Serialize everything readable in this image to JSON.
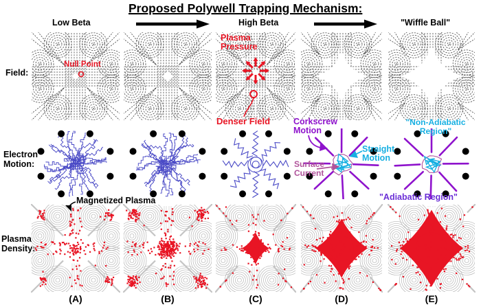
{
  "title": "Proposed Polywell Trapping Mechanism:",
  "header": {
    "stage_labels": [
      "Low Beta",
      "High Beta",
      "\"Wiffle Ball\""
    ]
  },
  "rows": {
    "field": "Field:",
    "electron": "Electron\nMotion:",
    "plasma": "Plasma\nDensity:"
  },
  "columns": [
    "(A)",
    "(B)",
    "(C)",
    "(D)",
    "(E)"
  ],
  "annotations": {
    "null_point": "Null Point",
    "plasma_pressure": "Plasma\nPressure",
    "denser_field": "Denser Field",
    "corkscrew_motion": "Corkscrew\nMotion",
    "straight_motion": "Straight\nMotion",
    "surface_current": "Surface\nCurrent",
    "non_adiabatic_region": "\"Non-Adiabatic\nRegion\"",
    "adiabatic_region": "\"Adiabatic Region\"",
    "magnetized_plasma": "Magnetized Plasma"
  },
  "colors": {
    "red": "#e81524",
    "blue": "#4a4ac6",
    "purple": "#8e12cc",
    "cyan": "#17b0e2",
    "plum": "#b0539b",
    "adiabatic_purple": "#6b2fd6",
    "black": "#000000",
    "field_line": "#3d3d3d",
    "contour": "#b5b5b5",
    "diag": "#c4c4c4"
  },
  "figure": {
    "field_panels": [
      {
        "void_radius": 7,
        "null_point": true
      },
      {
        "void_radius": 10
      },
      {
        "void_radius": 14,
        "pressure_arrows": true,
        "denser_field_marker": true
      },
      {
        "void_radius": 40
      },
      {
        "void_radius": 48
      }
    ],
    "electron_panels": [
      {
        "style": "dense",
        "seed": 7
      },
      {
        "style": "dense",
        "seed": 21
      },
      {
        "style": "spokes",
        "seed": 33
      },
      {
        "style": "wiffle",
        "seed": 44
      },
      {
        "style": "wiffle",
        "seed": 55
      }
    ],
    "plasma_panels": [
      {
        "mode": "sparse",
        "seed": 101,
        "diag_stop": 18
      },
      {
        "mode": "clustered",
        "seed": 102,
        "diag_stop": 18
      },
      {
        "mode": "blob",
        "seed": 103,
        "rh": 20,
        "rv": 23,
        "waist": 7,
        "diag_stop": 26
      },
      {
        "mode": "blob",
        "seed": 104,
        "rh": 38,
        "rv": 43,
        "waist": 15,
        "diag_stop": 42
      },
      {
        "mode": "blob",
        "seed": 105,
        "rh": 46,
        "rv": 56,
        "waist": 20,
        "diag_stop": 52
      }
    ]
  }
}
